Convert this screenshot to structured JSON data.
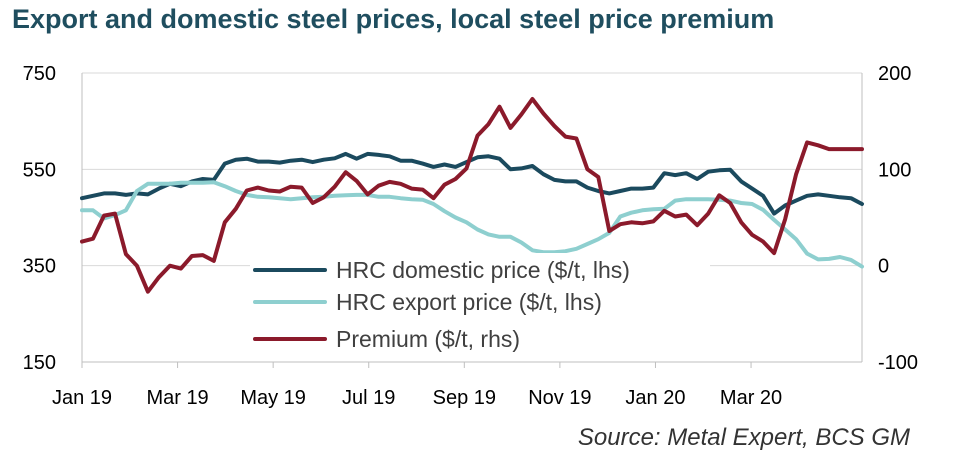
{
  "chart_data": {
    "type": "line",
    "title": "Export and domestic steel prices, local steel price premium",
    "source": "Source: Metal Expert, BCS GM",
    "x_tick_labels": [
      "Jan 19",
      "Mar 19",
      "May 19",
      "Jul 19",
      "Sep 19",
      "Nov 19",
      "Jan 20",
      "Mar 20"
    ],
    "y_left": {
      "min": 150,
      "max": 750,
      "ticks": [
        "150",
        "350",
        "550",
        "750"
      ]
    },
    "y_right": {
      "min": -100,
      "max": 200,
      "ticks": [
        "-100",
        "0",
        "100",
        "200"
      ]
    },
    "grid": "horizontal",
    "legend_position": "center-left",
    "x_weeks": [
      0,
      1,
      2,
      3,
      4,
      5,
      6,
      7,
      8,
      9,
      10,
      11,
      12,
      13,
      14,
      15,
      16,
      17,
      18,
      19,
      20,
      21,
      22,
      23,
      24,
      25,
      26,
      27,
      28,
      29,
      30,
      31,
      32,
      33,
      34,
      35,
      36,
      37,
      38,
      39,
      40,
      41,
      42,
      43,
      44,
      45,
      46,
      47,
      48,
      49,
      50,
      51,
      52,
      53,
      54,
      55,
      56,
      57,
      58,
      59,
      60,
      61,
      62,
      63,
      64,
      65,
      66,
      67,
      68,
      69,
      70,
      71
    ],
    "series": [
      {
        "name": "HRC domestic price ($/t, lhs)",
        "axis": "left",
        "color": "#1b4a5e",
        "values": [
          490,
          495,
          500,
          500,
          497,
          500,
          498,
          510,
          520,
          515,
          525,
          530,
          528,
          562,
          570,
          572,
          566,
          566,
          564,
          568,
          570,
          565,
          570,
          573,
          582,
          572,
          582,
          580,
          577,
          568,
          568,
          562,
          555,
          560,
          555,
          565,
          575,
          577,
          572,
          550,
          552,
          557,
          540,
          528,
          525,
          525,
          512,
          505,
          500,
          505,
          510,
          510,
          512,
          542,
          538,
          542,
          530,
          545,
          548,
          549,
          525,
          510,
          495,
          458,
          475,
          485,
          495,
          498,
          495,
          492,
          490,
          478
        ]
      },
      {
        "name": "HRC export price ($/t, lhs)",
        "axis": "left",
        "color": "#8ecfcf",
        "values": [
          465,
          465,
          448,
          455,
          465,
          505,
          520,
          520,
          520,
          522,
          522,
          522,
          523,
          515,
          505,
          497,
          493,
          492,
          490,
          488,
          490,
          492,
          493,
          495,
          496,
          497,
          497,
          493,
          493,
          490,
          488,
          487,
          478,
          463,
          450,
          440,
          425,
          415,
          410,
          410,
          398,
          382,
          378,
          378,
          380,
          385,
          395,
          405,
          418,
          452,
          460,
          465,
          467,
          468,
          485,
          488,
          488,
          488,
          487,
          485,
          480,
          478,
          466,
          445,
          425,
          405,
          375,
          363,
          364,
          368,
          362,
          348
        ]
      },
      {
        "name": "Premium ($/t, rhs)",
        "axis": "right",
        "color": "#8b1a2b",
        "values": [
          25,
          28,
          52,
          54,
          12,
          0,
          -27,
          -12,
          0,
          -3,
          10,
          11,
          5,
          45,
          59,
          78,
          81,
          78,
          77,
          82,
          81,
          65,
          71,
          82,
          97,
          88,
          74,
          83,
          87,
          85,
          80,
          79,
          70,
          84,
          90,
          101,
          135,
          147,
          165,
          143,
          157,
          173,
          158,
          145,
          134,
          132,
          100,
          92,
          36,
          43,
          45,
          44,
          46,
          57,
          51,
          53,
          42,
          54,
          73,
          65,
          45,
          32,
          25,
          13,
          48,
          95,
          128,
          125,
          121,
          121,
          121,
          121
        ]
      }
    ]
  }
}
